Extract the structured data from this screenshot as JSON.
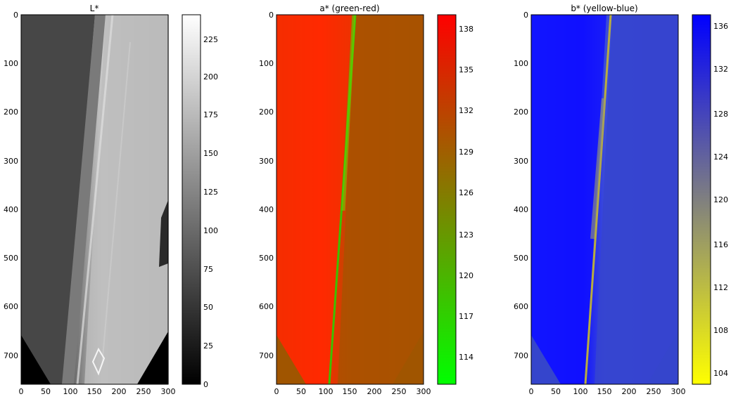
{
  "panels": [
    {
      "title": "L*",
      "x_ticks": [
        "0",
        "50",
        "100",
        "150",
        "200",
        "250",
        "300"
      ],
      "y_ticks": [
        "0",
        "100",
        "200",
        "300",
        "400",
        "500",
        "600",
        "700"
      ],
      "colorbar": {
        "ticks": [
          "0",
          "25",
          "50",
          "75",
          "100",
          "125",
          "150",
          "175",
          "200",
          "225"
        ],
        "range": [
          0,
          240
        ],
        "gradient": [
          "#000000",
          "#ffffff"
        ]
      }
    },
    {
      "title": "a* (green-red)",
      "x_ticks": [
        "0",
        "50",
        "100",
        "150",
        "200",
        "250",
        "300"
      ],
      "y_ticks": [
        "0",
        "100",
        "200",
        "300",
        "400",
        "500",
        "600",
        "700"
      ],
      "colorbar": {
        "ticks": [
          "114",
          "117",
          "120",
          "123",
          "126",
          "129",
          "132",
          "135",
          "138"
        ],
        "range": [
          113,
          139.3
        ],
        "gradient": [
          "#00ff00",
          "#ff0000"
        ]
      }
    },
    {
      "title": "b* (yellow-blue)",
      "x_ticks": [
        "0",
        "50",
        "100",
        "150",
        "200",
        "250",
        "300"
      ],
      "y_ticks": [
        "0",
        "100",
        "200",
        "300",
        "400",
        "500",
        "600",
        "700"
      ],
      "colorbar": {
        "ticks": [
          "104",
          "108",
          "112",
          "116",
          "120",
          "124",
          "128",
          "132",
          "136"
        ],
        "range": [
          103,
          137.3
        ],
        "gradient": [
          "#ffff00",
          "#0000ff"
        ]
      }
    }
  ]
}
